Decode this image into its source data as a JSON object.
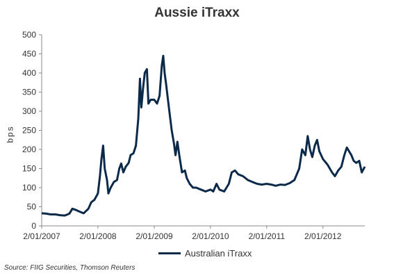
{
  "chart_data": {
    "type": "line",
    "title": "Aussie iTraxx",
    "xlabel": "",
    "ylabel": "bps",
    "ylim": [
      0,
      500
    ],
    "yticks": [
      0,
      50,
      100,
      150,
      200,
      250,
      300,
      350,
      400,
      450,
      500
    ],
    "xticks": [
      "2/01/2007",
      "2/01/2008",
      "2/01/2009",
      "2/01/2010",
      "2/01/2011",
      "2/01/2012"
    ],
    "x_range": [
      "2007-01-02",
      "2012-09-30"
    ],
    "series": [
      {
        "name": "Australian iTraxx",
        "color": "#0b2a4a",
        "points": [
          [
            "2007-01-02",
            33
          ],
          [
            "2007-02-01",
            32
          ],
          [
            "2007-03-01",
            30
          ],
          [
            "2007-04-01",
            30
          ],
          [
            "2007-05-01",
            28
          ],
          [
            "2007-06-01",
            27
          ],
          [
            "2007-07-01",
            32
          ],
          [
            "2007-07-20",
            45
          ],
          [
            "2007-08-10",
            42
          ],
          [
            "2007-09-01",
            38
          ],
          [
            "2007-10-01",
            33
          ],
          [
            "2007-11-01",
            45
          ],
          [
            "2007-11-20",
            62
          ],
          [
            "2007-12-10",
            68
          ],
          [
            "2008-01-02",
            85
          ],
          [
            "2008-01-15",
            130
          ],
          [
            "2008-01-25",
            175
          ],
          [
            "2008-02-05",
            210
          ],
          [
            "2008-02-15",
            150
          ],
          [
            "2008-03-01",
            120
          ],
          [
            "2008-03-10",
            85
          ],
          [
            "2008-03-25",
            100
          ],
          [
            "2008-04-15",
            115
          ],
          [
            "2008-05-05",
            120
          ],
          [
            "2008-05-20",
            150
          ],
          [
            "2008-06-01",
            163
          ],
          [
            "2008-06-15",
            140
          ],
          [
            "2008-07-01",
            155
          ],
          [
            "2008-07-20",
            165
          ],
          [
            "2008-08-01",
            185
          ],
          [
            "2008-08-20",
            190
          ],
          [
            "2008-09-05",
            210
          ],
          [
            "2008-09-20",
            280
          ],
          [
            "2008-10-01",
            385
          ],
          [
            "2008-10-10",
            310
          ],
          [
            "2008-10-20",
            355
          ],
          [
            "2008-11-01",
            400
          ],
          [
            "2008-11-15",
            410
          ],
          [
            "2008-11-25",
            320
          ],
          [
            "2008-12-10",
            330
          ],
          [
            "2009-01-02",
            330
          ],
          [
            "2009-01-20",
            320
          ],
          [
            "2009-02-05",
            340
          ],
          [
            "2009-02-20",
            420
          ],
          [
            "2009-03-01",
            445
          ],
          [
            "2009-03-10",
            400
          ],
          [
            "2009-03-20",
            370
          ],
          [
            "2009-04-01",
            330
          ],
          [
            "2009-04-10",
            300
          ],
          [
            "2009-04-25",
            250
          ],
          [
            "2009-05-10",
            215
          ],
          [
            "2009-05-20",
            185
          ],
          [
            "2009-06-01",
            220
          ],
          [
            "2009-06-15",
            180
          ],
          [
            "2009-07-01",
            140
          ],
          [
            "2009-07-20",
            145
          ],
          [
            "2009-08-01",
            125
          ],
          [
            "2009-08-20",
            110
          ],
          [
            "2009-09-10",
            100
          ],
          [
            "2009-10-01",
            100
          ],
          [
            "2009-11-01",
            95
          ],
          [
            "2009-12-01",
            90
          ],
          [
            "2010-01-02",
            95
          ],
          [
            "2010-01-20",
            90
          ],
          [
            "2010-02-10",
            110
          ],
          [
            "2010-03-01",
            95
          ],
          [
            "2010-04-01",
            90
          ],
          [
            "2010-05-01",
            110
          ],
          [
            "2010-05-20",
            140
          ],
          [
            "2010-06-10",
            145
          ],
          [
            "2010-07-01",
            135
          ],
          [
            "2010-08-01",
            130
          ],
          [
            "2010-09-01",
            120
          ],
          [
            "2010-10-01",
            115
          ],
          [
            "2010-11-01",
            110
          ],
          [
            "2010-12-01",
            108
          ],
          [
            "2011-01-02",
            110
          ],
          [
            "2011-02-01",
            108
          ],
          [
            "2011-03-01",
            105
          ],
          [
            "2011-04-01",
            108
          ],
          [
            "2011-05-01",
            107
          ],
          [
            "2011-06-01",
            112
          ],
          [
            "2011-07-01",
            120
          ],
          [
            "2011-08-01",
            150
          ],
          [
            "2011-08-20",
            200
          ],
          [
            "2011-09-10",
            185
          ],
          [
            "2011-09-25",
            235
          ],
          [
            "2011-10-10",
            200
          ],
          [
            "2011-10-25",
            180
          ],
          [
            "2011-11-10",
            210
          ],
          [
            "2011-11-25",
            225
          ],
          [
            "2011-12-10",
            195
          ],
          [
            "2012-01-02",
            175
          ],
          [
            "2012-02-01",
            160
          ],
          [
            "2012-03-01",
            140
          ],
          [
            "2012-03-20",
            130
          ],
          [
            "2012-04-10",
            145
          ],
          [
            "2012-05-01",
            155
          ],
          [
            "2012-05-20",
            185
          ],
          [
            "2012-06-05",
            205
          ],
          [
            "2012-06-20",
            195
          ],
          [
            "2012-07-05",
            185
          ],
          [
            "2012-07-20",
            170
          ],
          [
            "2012-08-05",
            165
          ],
          [
            "2012-08-25",
            170
          ],
          [
            "2012-09-10",
            140
          ],
          [
            "2012-09-30",
            155
          ]
        ]
      }
    ],
    "legend_position": "bottom",
    "grid": false
  },
  "source": "Source: FIIG Securities, Thomson Reuters"
}
